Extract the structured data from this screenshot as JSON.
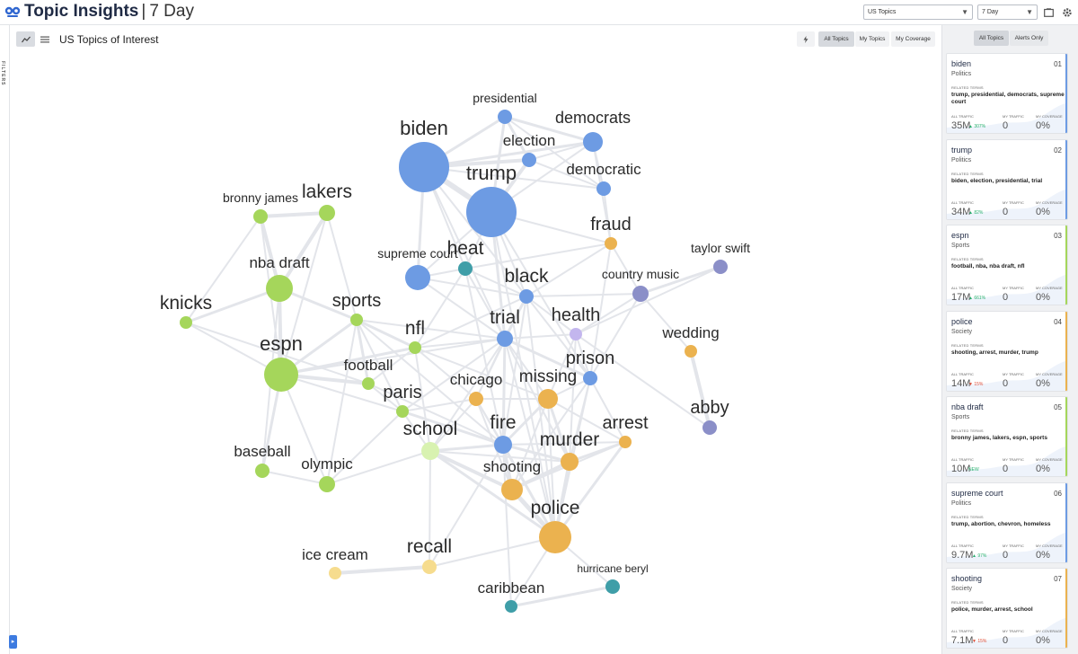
{
  "app": {
    "title": "Topic Insights",
    "separator": "|",
    "period": "7 Day"
  },
  "header": {
    "topics_select": "US Topics",
    "period_select": "7 Day"
  },
  "filters_label": "FILTERS",
  "chart": {
    "title": "US Topics of Interest",
    "filter_buttons": [
      "All Topics",
      "My Topics",
      "My Coverage"
    ]
  },
  "colors": {
    "politics": "#6d9be3",
    "sports": "#a5d65b",
    "society": "#ebb24f",
    "entertainment": "#8b8fc8",
    "weather": "#3f9ea8",
    "health": "#c3b6ee",
    "light_green": "#d8f2b0",
    "light_yellow": "#f6dc8e"
  },
  "graph": {
    "nodes": [
      {
        "id": "presidential",
        "label": "presidential",
        "group": "politics"
      },
      {
        "id": "democrats",
        "label": "democrats",
        "group": "politics"
      },
      {
        "id": "election",
        "label": "election",
        "group": "politics"
      },
      {
        "id": "biden",
        "label": "biden",
        "group": "politics"
      },
      {
        "id": "democratic",
        "label": "democratic",
        "group": "politics"
      },
      {
        "id": "trump",
        "label": "trump",
        "group": "politics"
      },
      {
        "id": "fraud",
        "label": "fraud",
        "group": "society"
      },
      {
        "id": "bronny",
        "label": "bronny james",
        "group": "sports"
      },
      {
        "id": "lakers",
        "label": "lakers",
        "group": "sports"
      },
      {
        "id": "heat",
        "label": "heat",
        "group": "weather"
      },
      {
        "id": "supremecourt",
        "label": "supreme court",
        "group": "politics"
      },
      {
        "id": "taylorswift",
        "label": "taylor swift",
        "group": "entertainment"
      },
      {
        "id": "nbadraft",
        "label": "nba draft",
        "group": "sports"
      },
      {
        "id": "black",
        "label": "black",
        "group": "politics"
      },
      {
        "id": "countrymusic",
        "label": "country music",
        "group": "entertainment"
      },
      {
        "id": "knicks",
        "label": "knicks",
        "group": "sports"
      },
      {
        "id": "sports",
        "label": "sports",
        "group": "sports"
      },
      {
        "id": "health",
        "label": "health",
        "group": "health"
      },
      {
        "id": "trial",
        "label": "trial",
        "group": "politics"
      },
      {
        "id": "nfl",
        "label": "nfl",
        "group": "sports"
      },
      {
        "id": "wedding",
        "label": "wedding",
        "group": "society"
      },
      {
        "id": "espn",
        "label": "espn",
        "group": "sports"
      },
      {
        "id": "football",
        "label": "football",
        "group": "sports"
      },
      {
        "id": "prison",
        "label": "prison",
        "group": "politics"
      },
      {
        "id": "chicago",
        "label": "chicago",
        "group": "society"
      },
      {
        "id": "missing",
        "label": "missing",
        "group": "society"
      },
      {
        "id": "paris",
        "label": "paris",
        "group": "sports"
      },
      {
        "id": "abby",
        "label": "abby",
        "group": "entertainment"
      },
      {
        "id": "arrest",
        "label": "arrest",
        "group": "society"
      },
      {
        "id": "fire",
        "label": "fire",
        "group": "politics"
      },
      {
        "id": "school",
        "label": "school",
        "group": "light_green"
      },
      {
        "id": "murder",
        "label": "murder",
        "group": "society"
      },
      {
        "id": "baseball",
        "label": "baseball",
        "group": "sports"
      },
      {
        "id": "olympic",
        "label": "olympic",
        "group": "sports"
      },
      {
        "id": "shooting",
        "label": "shooting",
        "group": "society"
      },
      {
        "id": "police",
        "label": "police",
        "group": "society"
      },
      {
        "id": "icecream",
        "label": "ice cream",
        "group": "light_yellow"
      },
      {
        "id": "recall",
        "label": "recall",
        "group": "light_yellow"
      },
      {
        "id": "hurricaneberyl",
        "label": "hurricane beryl",
        "group": "weather"
      },
      {
        "id": "caribbean",
        "label": "caribbean",
        "group": "weather"
      }
    ]
  },
  "sidebar": {
    "tabs": [
      "All Topics",
      "Alerts Only"
    ],
    "metric_labels": {
      "related": "RELATED TERMS",
      "all": "ALL TRAFFIC",
      "my": "MY TRAFFIC",
      "cov": "MY COVERAGE"
    },
    "cards": [
      {
        "title": "biden",
        "rank": "01",
        "category": "Politics",
        "related": "trump, presidential, democrats, supreme court",
        "traffic": "35M",
        "delta": "307%",
        "trend": "up",
        "my_traffic": "0",
        "coverage": "0%",
        "accent": "#6d9be3"
      },
      {
        "title": "trump",
        "rank": "02",
        "category": "Politics",
        "related": "biden, election, presidential, trial",
        "traffic": "34M",
        "delta": "82%",
        "trend": "up",
        "my_traffic": "0",
        "coverage": "0%",
        "accent": "#6d9be3"
      },
      {
        "title": "espn",
        "rank": "03",
        "category": "Sports",
        "related": "football, nba, nba draft, nfl",
        "traffic": "17M",
        "delta": "661%",
        "trend": "up",
        "my_traffic": "0",
        "coverage": "0%",
        "accent": "#a5d65b"
      },
      {
        "title": "police",
        "rank": "04",
        "category": "Society",
        "related": "shooting, arrest, murder, trump",
        "traffic": "14M",
        "delta": "15%",
        "trend": "down",
        "my_traffic": "0",
        "coverage": "0%",
        "accent": "#ebb24f"
      },
      {
        "title": "nba draft",
        "rank": "05",
        "category": "Sports",
        "related": "bronny james, lakers, espn, sports",
        "traffic": "10M",
        "delta": "NEW",
        "trend": "new",
        "my_traffic": "0",
        "coverage": "0%",
        "accent": "#a5d65b"
      },
      {
        "title": "supreme court",
        "rank": "06",
        "category": "Politics",
        "related": "trump, abortion, chevron, homeless",
        "traffic": "9.7M",
        "delta": "97%",
        "trend": "up",
        "my_traffic": "0",
        "coverage": "0%",
        "accent": "#6d9be3"
      },
      {
        "title": "shooting",
        "rank": "07",
        "category": "Society",
        "related": "police, murder, arrest, school",
        "traffic": "7.1M",
        "delta": "15%",
        "trend": "down",
        "my_traffic": "0",
        "coverage": "0%",
        "accent": "#ebb24f"
      }
    ]
  }
}
